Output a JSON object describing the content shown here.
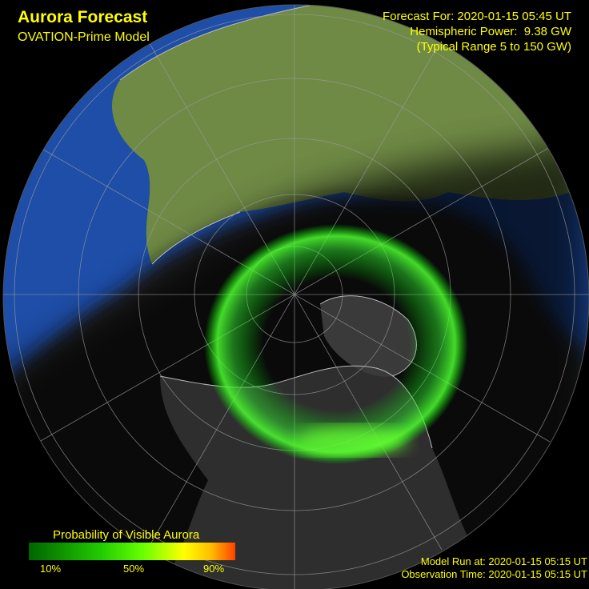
{
  "header": {
    "title": "Aurora Forecast",
    "subtitle": "OVATION-Prime Model"
  },
  "info": {
    "forecast": "Forecast For: 2020-01-15 05:45 UT",
    "power": "Hemispheric Power:  9.38 GW",
    "range": "(Typical Range 5 to 150 GW)"
  },
  "legend": {
    "title": "Probability of Visible Aurora",
    "ticks": [
      "10%",
      "50%",
      "90%"
    ]
  },
  "footer": {
    "model_run": "Model Run at: 2020-01-15 05:15 UT",
    "observation": "Observation Time: 2020-01-15 05:15 UT"
  }
}
